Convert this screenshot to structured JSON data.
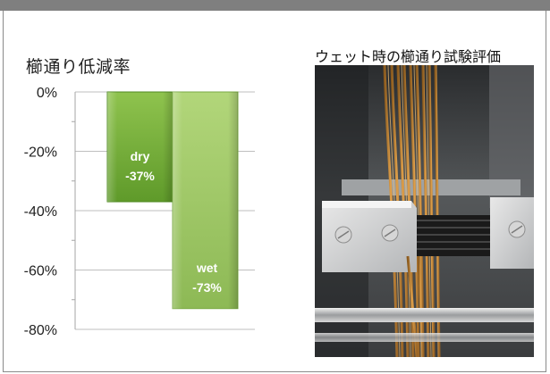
{
  "chart_data": {
    "type": "bar",
    "title": "櫛通り低減率",
    "categories": [
      "dry",
      "wet"
    ],
    "values": [
      -37,
      -73
    ],
    "data_labels": [
      "dry\n-37%",
      "wet\n-73%"
    ],
    "ylim": [
      -80,
      0
    ],
    "yticks": [
      0,
      -20,
      -40,
      -60,
      -80
    ],
    "ytick_labels": [
      "0%",
      "-20%",
      "-40%",
      "-60%",
      "-80%"
    ],
    "grid": true,
    "xlabel": "",
    "ylabel": ""
  },
  "photo": {
    "caption": "ウェット時の櫛通り試験評価"
  },
  "colors": {
    "bar_dry_top": "#8fc34e",
    "bar_dry_bottom": "#5f9a2a",
    "bar_wet_top": "#b2d67a",
    "bar_wet_bottom": "#8db955",
    "grid": "#bfbfbf",
    "header": "#7f7f7f"
  }
}
